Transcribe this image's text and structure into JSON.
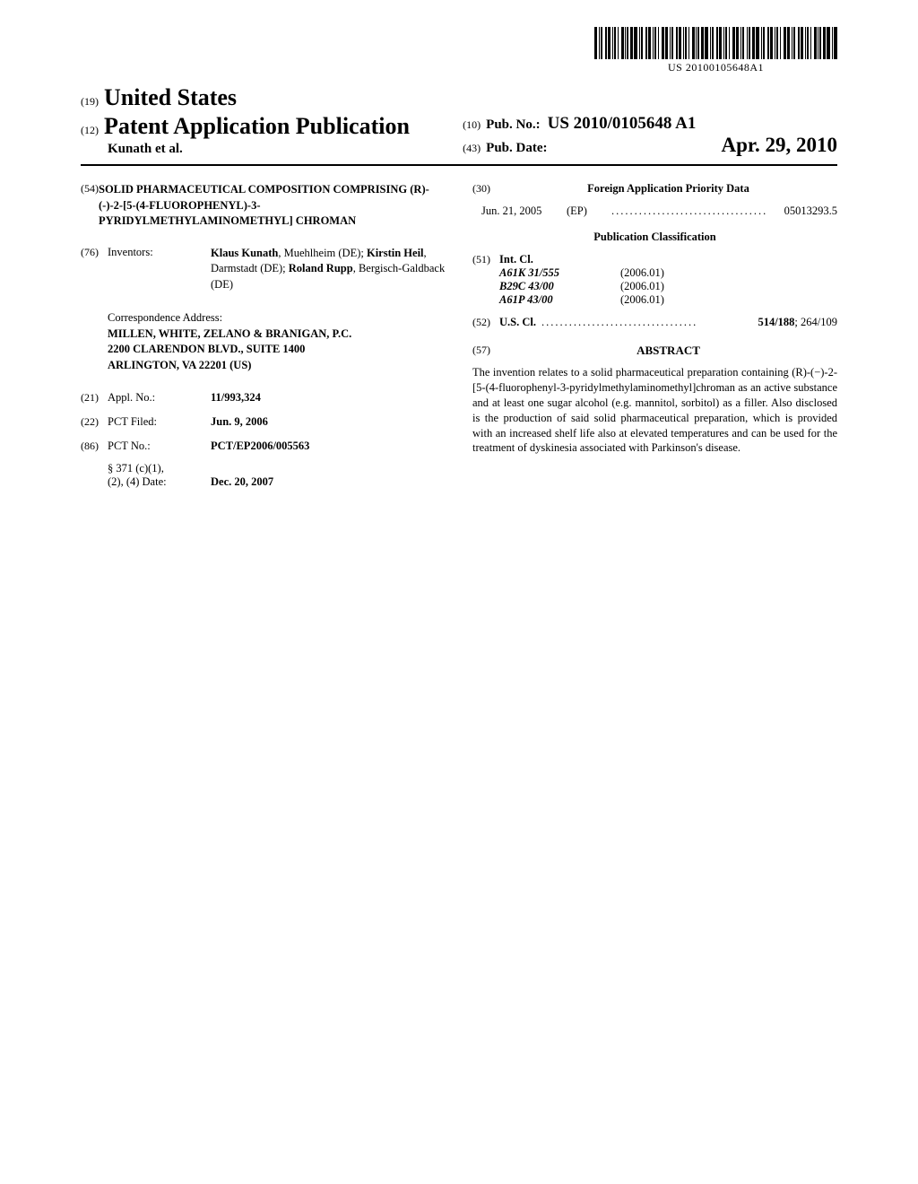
{
  "barcode_number": "US 20100105648A1",
  "header": {
    "inid_country": "(19)",
    "country": "United States",
    "inid_pub": "(12)",
    "pub_title": "Patent Application Publication",
    "applicant": "Kunath et al.",
    "inid_pubno": "(10)",
    "pubno_label": "Pub. No.:",
    "pubno_value": "US 2010/0105648 A1",
    "inid_pubdate": "(43)",
    "pubdate_label": "Pub. Date:",
    "pubdate_value": "Apr. 29, 2010"
  },
  "left": {
    "title_inid": "(54)",
    "title": "SOLID PHARMACEUTICAL COMPOSITION COMPRISING (R)-(-)-2-[5-(4-FLUOROPHENYL)-3-PYRIDYLMETHYLAMINOMETHYL] CHROMAN",
    "inventors_inid": "(76)",
    "inventors_label": "Inventors:",
    "inventors_html": "Klaus Kunath|, Muehlheim (DE); |Kirstin Heil|, Darmstadt (DE); |Roland Rupp|, Bergisch-Galdback (DE)",
    "correspondence_label": "Correspondence Address:",
    "correspondence_name": "MILLEN, WHITE, ZELANO & BRANIGAN, P.C.",
    "correspondence_addr1": "2200 CLARENDON BLVD., SUITE 1400",
    "correspondence_addr2": "ARLINGTON, VA 22201 (US)",
    "applno_inid": "(21)",
    "applno_label": "Appl. No.:",
    "applno_value": "11/993,324",
    "pctfiled_inid": "(22)",
    "pctfiled_label": "PCT Filed:",
    "pctfiled_value": "Jun. 9, 2006",
    "pctno_inid": "(86)",
    "pctno_label": "PCT No.:",
    "pctno_value": "PCT/EP2006/005563",
    "s371_label1": "§ 371 (c)(1),",
    "s371_label2": "(2), (4) Date:",
    "s371_value": "Dec. 20, 2007"
  },
  "right": {
    "foreign_inid": "(30)",
    "foreign_heading": "Foreign Application Priority Data",
    "foreign_date": "Jun. 21, 2005",
    "foreign_country": "(EP)",
    "foreign_num": "05013293.5",
    "pubclass_heading": "Publication Classification",
    "intcl_inid": "(51)",
    "intcl_label": "Int. Cl.",
    "intcl": [
      {
        "code": "A61K 31/555",
        "ver": "(2006.01)"
      },
      {
        "code": "B29C 43/00",
        "ver": "(2006.01)"
      },
      {
        "code": "A61P 43/00",
        "ver": "(2006.01)"
      }
    ],
    "uscl_inid": "(52)",
    "uscl_label": "U.S. Cl.",
    "uscl_primary": "514/188",
    "uscl_secondary": "; 264/109",
    "abstract_inid": "(57)",
    "abstract_heading": "ABSTRACT",
    "abstract_text": "The invention relates to a solid pharmaceutical preparation containing (R)-(−)-2-[5-(4-fluorophenyl-3-pyridylmethylaminomethyl]chroman as an active substance and at least one sugar alcohol (e.g. mannitol, sorbitol) as a filler. Also disclosed is the production of said solid pharmaceutical preparation, which is provided with an increased shelf life also at elevated temperatures and can be used for the treatment of dyskinesia associated with Parkinson's disease."
  },
  "dots": ".................................."
}
